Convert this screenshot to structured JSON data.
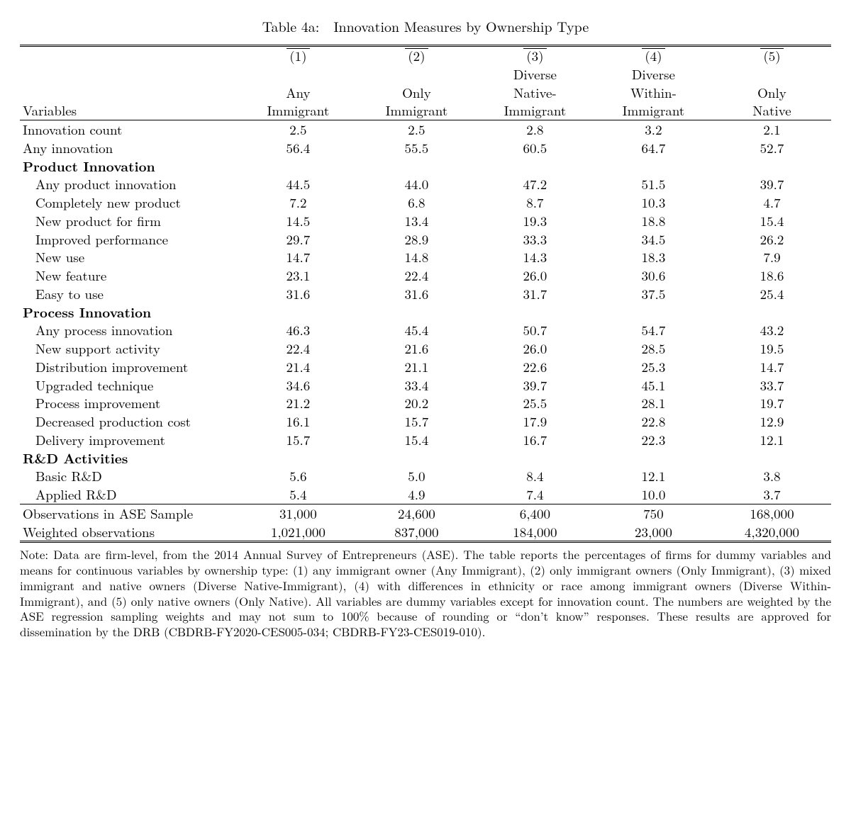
{
  "title_prefix": "Table 4a:",
  "title_text": "Innovation Measures by Ownership Type",
  "header": {
    "var_label": "Variables",
    "col_nums": [
      "(1)",
      "(2)",
      "(3)",
      "(4)",
      "(5)"
    ],
    "col_labels_line1": [
      "",
      "",
      "Diverse",
      "Diverse",
      ""
    ],
    "col_labels_line2": [
      "Any",
      "Only",
      "Native-",
      "Within-",
      "Only"
    ],
    "col_labels_line3": [
      "Immigrant",
      "Immigrant",
      "Immigrant",
      "Immigrant",
      "Native"
    ]
  },
  "rows": [
    {
      "type": "data",
      "label": "Innovation count",
      "vals": [
        "2.5",
        "2.5",
        "2.8",
        "3.2",
        "2.1"
      ]
    },
    {
      "type": "data",
      "label": "Any innovation",
      "vals": [
        "56.4",
        "55.5",
        "60.5",
        "64.7",
        "52.7"
      ]
    },
    {
      "type": "section",
      "label": "Product Innovation"
    },
    {
      "type": "data",
      "indent": true,
      "label": "Any product innovation",
      "vals": [
        "44.5",
        "44.0",
        "47.2",
        "51.5",
        "39.7"
      ]
    },
    {
      "type": "data",
      "indent": true,
      "label": "Completely new product",
      "vals": [
        "7.2",
        "6.8",
        "8.7",
        "10.3",
        "4.7"
      ]
    },
    {
      "type": "data",
      "indent": true,
      "label": "New product for firm",
      "vals": [
        "14.5",
        "13.4",
        "19.3",
        "18.8",
        "15.4"
      ]
    },
    {
      "type": "data",
      "indent": true,
      "label": "Improved performance",
      "vals": [
        "29.7",
        "28.9",
        "33.3",
        "34.5",
        "26.2"
      ]
    },
    {
      "type": "data",
      "indent": true,
      "label": "New use",
      "vals": [
        "14.7",
        "14.8",
        "14.3",
        "18.3",
        "7.9"
      ]
    },
    {
      "type": "data",
      "indent": true,
      "label": "New feature",
      "vals": [
        "23.1",
        "22.4",
        "26.0",
        "30.6",
        "18.6"
      ]
    },
    {
      "type": "data",
      "indent": true,
      "label": "Easy to use",
      "vals": [
        "31.6",
        "31.6",
        "31.7",
        "37.5",
        "25.4"
      ]
    },
    {
      "type": "section",
      "label": "Process Innovation"
    },
    {
      "type": "data",
      "indent": true,
      "label": "Any process innovation",
      "vals": [
        "46.3",
        "45.4",
        "50.7",
        "54.7",
        "43.2"
      ]
    },
    {
      "type": "data",
      "indent": true,
      "label": "New support activity",
      "vals": [
        "22.4",
        "21.6",
        "26.0",
        "28.5",
        "19.5"
      ]
    },
    {
      "type": "data",
      "indent": true,
      "label": "Distribution improvement",
      "vals": [
        "21.4",
        "21.1",
        "22.6",
        "25.3",
        "14.7"
      ]
    },
    {
      "type": "data",
      "indent": true,
      "label": "Upgraded technique",
      "vals": [
        "34.6",
        "33.4",
        "39.7",
        "45.1",
        "33.7"
      ]
    },
    {
      "type": "data",
      "indent": true,
      "label": "Process improvement",
      "vals": [
        "21.2",
        "20.2",
        "25.5",
        "28.1",
        "19.7"
      ]
    },
    {
      "type": "data",
      "indent": true,
      "label": "Decreased production cost",
      "vals": [
        "16.1",
        "15.7",
        "17.9",
        "22.8",
        "12.9"
      ]
    },
    {
      "type": "data",
      "indent": true,
      "label": "Delivery improvement",
      "vals": [
        "15.7",
        "15.4",
        "16.7",
        "22.3",
        "12.1"
      ]
    },
    {
      "type": "section",
      "label": "R&D Activities"
    },
    {
      "type": "data",
      "indent": true,
      "label": "Basic R&D",
      "vals": [
        "5.6",
        "5.0",
        "8.4",
        "12.1",
        "3.8"
      ]
    },
    {
      "type": "data",
      "indent": true,
      "label": "Applied R&D",
      "vals": [
        "5.4",
        "4.9",
        "7.4",
        "10.0",
        "3.7"
      ]
    }
  ],
  "footer_rows": [
    {
      "label": "Observations in ASE Sample",
      "vals": [
        "31,000",
        "24,600",
        "6,400",
        "750",
        "168,000"
      ]
    },
    {
      "label": "Weighted observations",
      "vals": [
        "1,021,000",
        "837,000",
        "184,000",
        "23,000",
        "4,320,000"
      ]
    }
  ],
  "note": "Note: Data are firm-level, from the 2014 Annual Survey of Entrepreneurs (ASE). The table reports the percentages of firms for dummy variables and means for continuous variables by ownership type: (1) any immigrant owner (Any Immigrant), (2) only immigrant owners (Only Immigrant), (3) mixed immigrant and native owners (Diverse Native-Immigrant), (4) with differences in ethnicity or race among immigrant owners (Diverse Within-Immigrant), and (5) only native owners (Only Native). All variables are dummy variables except for innovation count. The numbers are weighted by the ASE regression sampling weights and may not sum to 100% because of rounding or “don’t know” responses. These results are approved for dissemination by the DRB (CBDRB-FY2020-CES005-034; CBDRB-FY23-CES019-010)."
}
